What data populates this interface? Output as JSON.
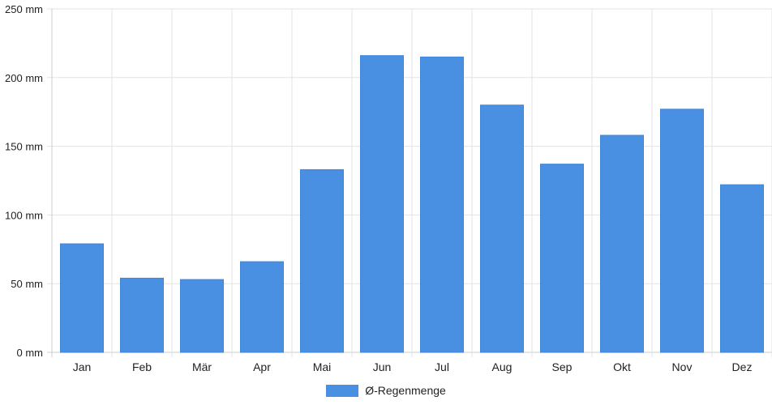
{
  "chart_data": {
    "type": "bar",
    "categories": [
      "Jan",
      "Feb",
      "Mär",
      "Apr",
      "Mai",
      "Jun",
      "Jul",
      "Aug",
      "Sep",
      "Okt",
      "Nov",
      "Dez"
    ],
    "series": [
      {
        "name": "Ø-Regenmenge",
        "values": [
          79,
          54,
          53,
          66,
          133,
          216,
          215,
          180,
          137,
          158,
          177,
          122
        ],
        "color": "#4a90e2"
      }
    ],
    "y_ticks": [
      "0 mm",
      "50 mm",
      "100 mm",
      "150 mm",
      "200 mm",
      "250 mm"
    ],
    "ylim": [
      0,
      250
    ],
    "grid": true,
    "legend_placement": "bottom-center"
  }
}
